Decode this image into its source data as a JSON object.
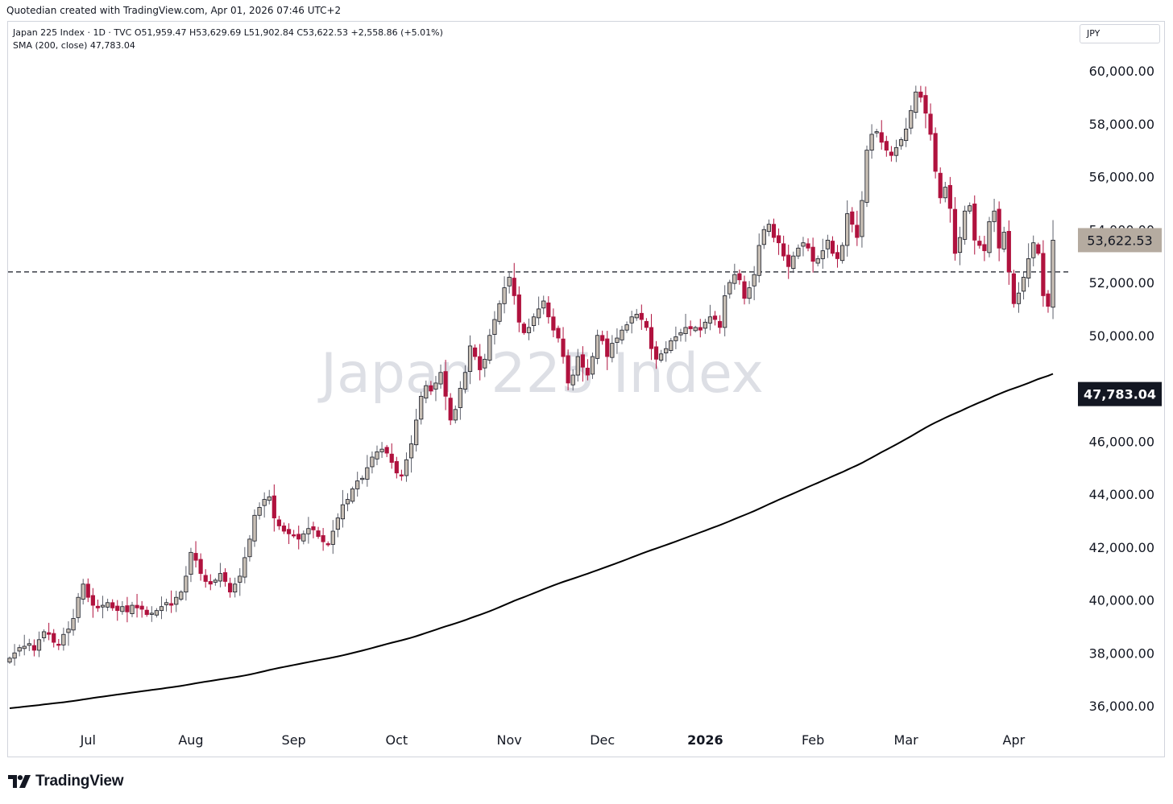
{
  "header": {
    "credit": "Quotedian created with TradingView.com, Apr 01, 2026 07:46 UTC+2"
  },
  "legend": {
    "line1": "Japan 225 Index · 1D · TVC  O51,959.47  H53,629.69  L51,902.84  C53,622.53  +2,558.86 (+5.01%)",
    "line2": "SMA (200, close)  47,783.04"
  },
  "currency": "JPY",
  "watermark": "Japan 225 Index",
  "branding": {
    "label": "TradingView",
    "icon": "tradingview-logo-icon"
  },
  "colors": {
    "up": "#c8bfb5",
    "down": "#b0123e",
    "sma": "#000000",
    "price_tag": "#b5aba0",
    "sma_tag": "#131722"
  },
  "chart_data": {
    "type": "candlestick",
    "title": "Japan 225 Index",
    "interval": "1D",
    "source": "TVC",
    "ylim": [
      35300,
      61300
    ],
    "y_ticks": [
      36000,
      38000,
      40000,
      42000,
      44000,
      46000,
      48000,
      50000,
      52000,
      54000,
      56000,
      58000,
      60000
    ],
    "y_tick_labels": [
      "36,000.00",
      "38,000.00",
      "40,000.00",
      "42,000.00",
      "44,000.00",
      "46,000.00",
      "48,000.00",
      "50,000.00",
      "52,000.00",
      "54,000.00",
      "56,000.00",
      "58,000.00",
      "60,000.00"
    ],
    "x_labels": [
      {
        "label": "Jul",
        "day": 16,
        "bold": false
      },
      {
        "label": "Aug",
        "day": 37,
        "bold": false
      },
      {
        "label": "Sep",
        "day": 58,
        "bold": false
      },
      {
        "label": "Oct",
        "day": 79,
        "bold": false
      },
      {
        "label": "Nov",
        "day": 102,
        "bold": false
      },
      {
        "label": "Dec",
        "day": 121,
        "bold": false
      },
      {
        "label": "2026",
        "day": 142,
        "bold": true
      },
      {
        "label": "Feb",
        "day": 164,
        "bold": false
      },
      {
        "label": "Mar",
        "day": 183,
        "bold": false
      },
      {
        "label": "Apr",
        "day": 205,
        "bold": false
      }
    ],
    "close_series": [
      37800,
      38000,
      38200,
      38250,
      38350,
      38100,
      38500,
      38800,
      38700,
      38400,
      38300,
      38700,
      38900,
      39300,
      40100,
      40600,
      40100,
      39800,
      39700,
      39800,
      39900,
      39700,
      39600,
      39750,
      39550,
      39800,
      39700,
      39650,
      39450,
      39500,
      39600,
      39750,
      39900,
      39800,
      40100,
      40300,
      40900,
      41800,
      41500,
      41000,
      40700,
      40600,
      40750,
      41000,
      40700,
      40300,
      40600,
      40900,
      41600,
      42300,
      43200,
      43500,
      43800,
      43900,
      43100,
      42800,
      42600,
      42500,
      42450,
      42300,
      42500,
      42700,
      42650,
      42400,
      42200,
      42100,
      42600,
      43100,
      43600,
      43800,
      44200,
      44500,
      44600,
      45000,
      45400,
      45600,
      45700,
      45550,
      45200,
      44800,
      44700,
      45300,
      45900,
      46800,
      47700,
      48100,
      47900,
      48200,
      48600,
      47700,
      46800,
      47200,
      48000,
      48600,
      49600,
      49200,
      48700,
      49100,
      50000,
      50600,
      51200,
      51800,
      52200,
      51500,
      50500,
      50100,
      50300,
      50700,
      51000,
      51300,
      50700,
      50200,
      49900,
      49200,
      48200,
      48500,
      49200,
      48800,
      48500,
      49200,
      50000,
      49800,
      49200,
      49700,
      49900,
      50200,
      50400,
      50700,
      50800,
      50600,
      50300,
      49500,
      49100,
      49300,
      49500,
      49800,
      49950,
      50100,
      50300,
      50250,
      50300,
      50200,
      50500,
      50700,
      50600,
      50300,
      51500,
      52000,
      52300,
      52100,
      51400,
      51800,
      52300,
      53400,
      54000,
      54200,
      53700,
      53500,
      53000,
      52600,
      53000,
      53300,
      53500,
      53300,
      52800,
      52900,
      53200,
      53600,
      53100,
      52900,
      53400,
      54600,
      54200,
      53700,
      55100,
      57000,
      57600,
      57700,
      57300,
      57000,
      56800,
      57100,
      57400,
      57800,
      58500,
      59200,
      59000,
      58400,
      57600,
      56200,
      55200,
      55600,
      54800,
      53100,
      53700,
      54700,
      54900,
      53600,
      53400,
      53200,
      54300,
      54700,
      53300,
      53900,
      52400,
      51200,
      51600,
      52200,
      52900,
      53500,
      53100,
      51500,
      51100,
      53600
    ]
  }
}
